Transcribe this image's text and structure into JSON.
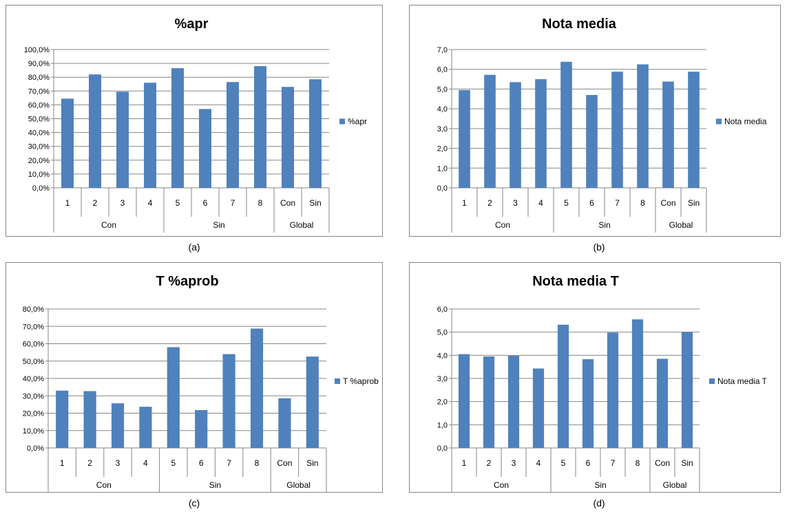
{
  "chart_data": [
    {
      "type": "bar",
      "title": "%apr",
      "caption": "(a)",
      "legend_position": "right",
      "grid": true,
      "series": [
        {
          "name": "%apr",
          "values": [
            64.5,
            82.0,
            69.5,
            76.0,
            86.5,
            57.0,
            76.5,
            88.0,
            73.0,
            78.5
          ]
        }
      ],
      "categories": [
        "1",
        "2",
        "3",
        "4",
        "5",
        "6",
        "7",
        "8",
        "Con",
        "Sin"
      ],
      "groups": [
        {
          "label": "Con",
          "count": 4
        },
        {
          "label": "Sin",
          "count": 4
        },
        {
          "label": "Global",
          "count": 2
        }
      ],
      "ylim": [
        0,
        100
      ],
      "y_step": 10,
      "y_tick_labels": [
        "0,0%",
        "10,0%",
        "20,0%",
        "30,0%",
        "40,0%",
        "50,0%",
        "60,0%",
        "70,0%",
        "80,0%",
        "90,0%",
        "100,0%"
      ],
      "bar_color": "#4f81bd"
    },
    {
      "type": "bar",
      "title": "Nota media",
      "caption": "(b)",
      "legend_position": "right",
      "grid": true,
      "series": [
        {
          "name": "Nota media",
          "values": [
            4.95,
            5.72,
            5.35,
            5.5,
            6.38,
            4.7,
            5.88,
            6.25,
            5.38,
            5.88
          ]
        }
      ],
      "categories": [
        "1",
        "2",
        "3",
        "4",
        "5",
        "6",
        "7",
        "8",
        "Con",
        "Sin"
      ],
      "groups": [
        {
          "label": "Con",
          "count": 4
        },
        {
          "label": "Sin",
          "count": 4
        },
        {
          "label": "Global",
          "count": 2
        }
      ],
      "ylim": [
        0,
        7
      ],
      "y_step": 1,
      "y_tick_labels": [
        "0,0",
        "1,0",
        "2,0",
        "3,0",
        "4,0",
        "5,0",
        "6,0",
        "7,0"
      ],
      "bar_color": "#4f81bd"
    },
    {
      "type": "bar",
      "title": "T %aprob",
      "caption": "(c)",
      "legend_position": "right",
      "grid": true,
      "series": [
        {
          "name": "T %aprob",
          "values": [
            33.0,
            32.7,
            25.7,
            23.7,
            58.0,
            21.8,
            54.0,
            68.7,
            28.6,
            52.6
          ]
        }
      ],
      "categories": [
        "1",
        "2",
        "3",
        "4",
        "5",
        "6",
        "7",
        "8",
        "Con",
        "Sin"
      ],
      "groups": [
        {
          "label": "Con",
          "count": 4
        },
        {
          "label": "Sin",
          "count": 4
        },
        {
          "label": "Global",
          "count": 2
        }
      ],
      "ylim": [
        0,
        80
      ],
      "y_step": 10,
      "y_tick_labels": [
        "0,0%",
        "10,0%",
        "20,0%",
        "30,0%",
        "40,0%",
        "50,0%",
        "60,0%",
        "70,0%",
        "80,0%"
      ],
      "bar_color": "#4f81bd"
    },
    {
      "type": "bar",
      "title": "Nota media T",
      "caption": "(d)",
      "legend_position": "right",
      "grid": true,
      "series": [
        {
          "name": "Nota media T",
          "values": [
            4.05,
            3.95,
            3.98,
            3.43,
            5.32,
            3.83,
            4.98,
            5.55,
            3.85,
            5.01
          ]
        }
      ],
      "categories": [
        "1",
        "2",
        "3",
        "4",
        "5",
        "6",
        "7",
        "8",
        "Con",
        "Sin"
      ],
      "groups": [
        {
          "label": "Con",
          "count": 4
        },
        {
          "label": "Sin",
          "count": 4
        },
        {
          "label": "Global",
          "count": 2
        }
      ],
      "ylim": [
        0,
        6
      ],
      "y_step": 1,
      "y_tick_labels": [
        "0,0",
        "1,0",
        "2,0",
        "3,0",
        "4,0",
        "5,0",
        "6,0"
      ],
      "bar_color": "#4f81bd"
    }
  ]
}
